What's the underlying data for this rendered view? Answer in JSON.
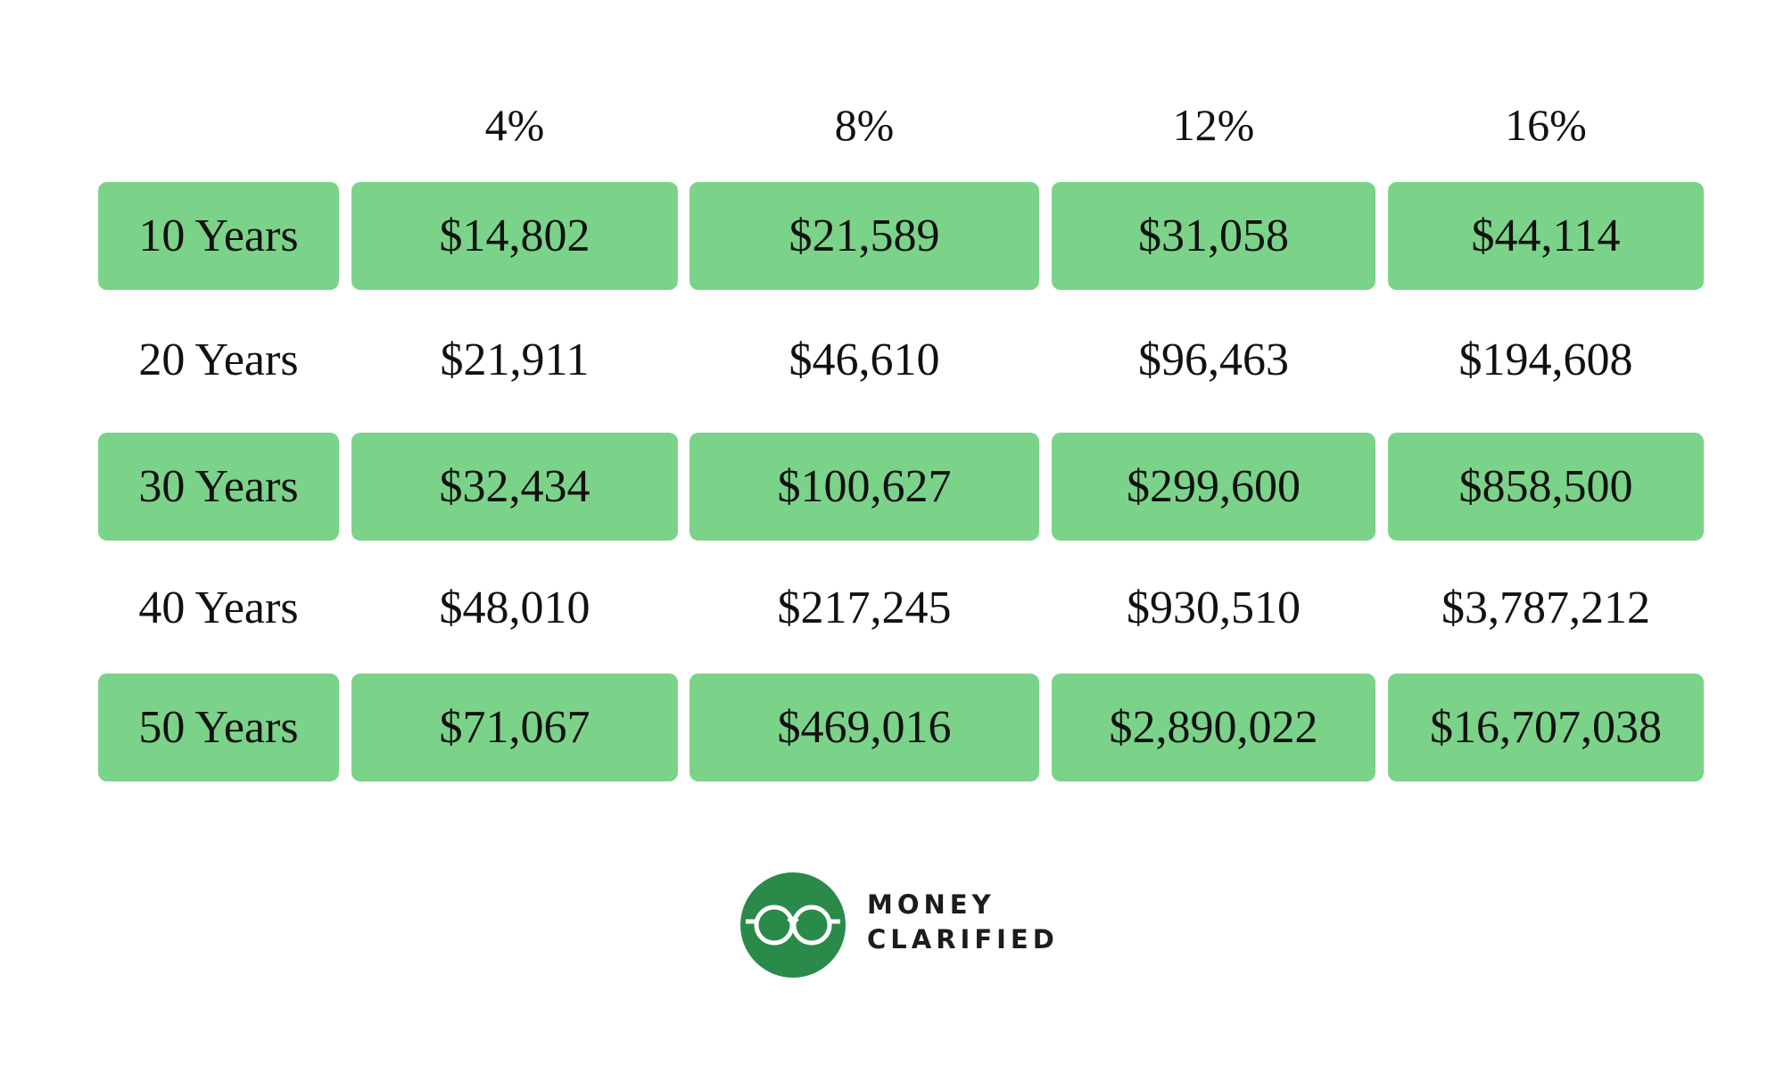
{
  "table": {
    "header": [
      "4%",
      "8%",
      "12%",
      "16%"
    ],
    "rows": [
      [
        "10 Years",
        "$14,802",
        "$21,589",
        "$31,058",
        "$44,114"
      ],
      [
        "20 Years",
        "$21,911",
        "$46,610",
        "$96,463",
        "$194,608"
      ],
      [
        "30 Years",
        "$32,434",
        "$100,627",
        "$299,600",
        "$858,500"
      ],
      [
        "40 Years",
        "$48,010",
        "$217,245",
        "$930,510",
        "$3,787,212"
      ],
      [
        "50 Years",
        "$71,067",
        "$469,016",
        "$2,890,022",
        "$16,707,038"
      ]
    ]
  },
  "logo": {
    "line1": "MONEY",
    "line2": "CLARIFIED"
  }
}
